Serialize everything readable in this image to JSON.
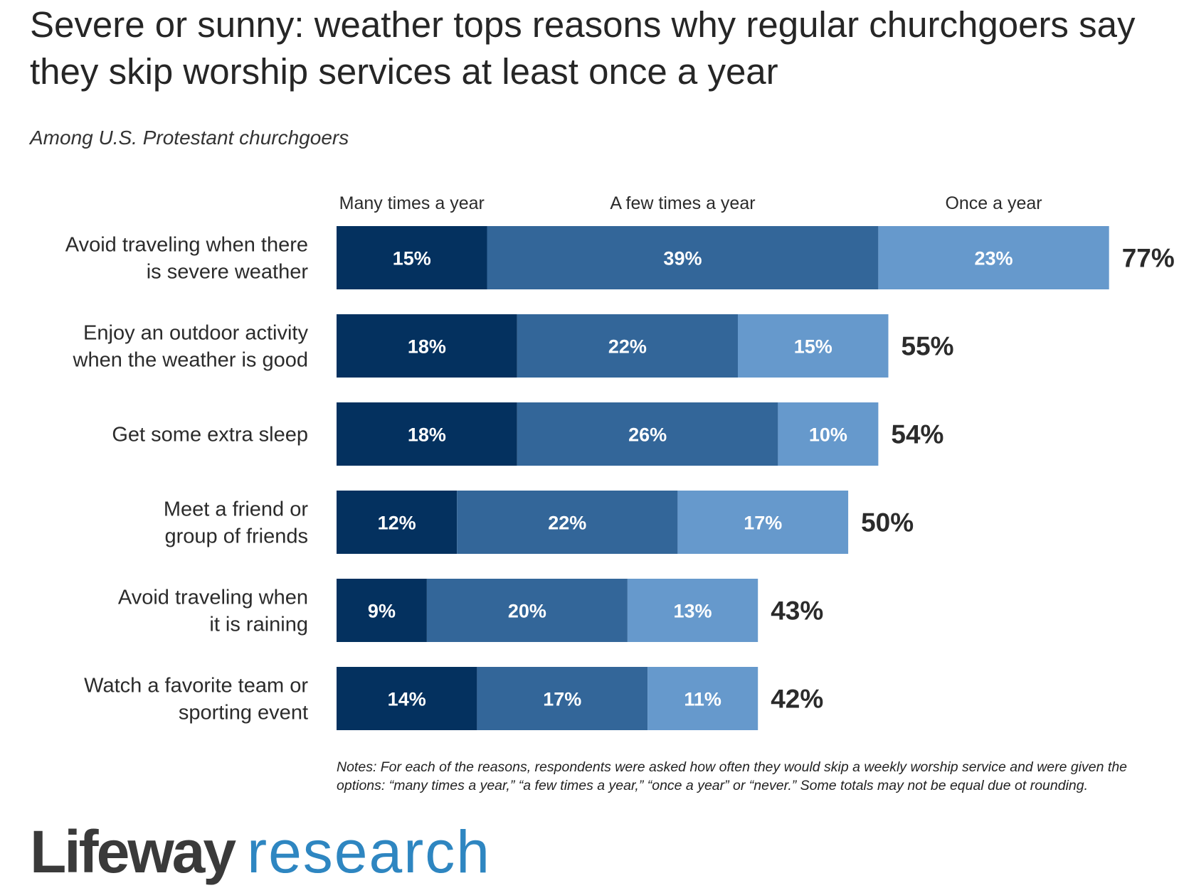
{
  "title": "Severe or sunny: weather tops reasons why regular churchgoers say they skip worship services at least once a year",
  "subtitle": "Among U.S. Protestant churchgoers",
  "notes": "Notes: For each of the reasons, respondents were asked how often they would skip a weekly worship service and were given the options: “many times a year,” “a few times a year,” “once a year” or “never.” Some totals may not be equal due ot rounding.",
  "logo": {
    "word1": "Lifeway",
    "word2": "research"
  },
  "colors": {
    "many": "#04315f",
    "few": "#336699",
    "once": "#6699cc",
    "label": "#ffffff",
    "total": "#2b2b2b"
  },
  "chart_data": {
    "type": "bar",
    "orientation": "horizontal",
    "stacked": true,
    "title": "Severe or sunny: weather tops reasons why regular churchgoers say they skip worship services at least once a year",
    "subtitle": "Among U.S. Protestant churchgoers",
    "xlim": [
      0,
      77
    ],
    "grid": false,
    "legend_position": "top",
    "categories": [
      [
        "Avoid traveling when there",
        "is severe weather"
      ],
      [
        "Enjoy an outdoor activity",
        "when the weather is good"
      ],
      [
        "Get some extra sleep"
      ],
      [
        "Meet a friend or",
        "group of friends"
      ],
      [
        "Avoid traveling when",
        "it is raining"
      ],
      [
        "Watch a favorite team or",
        "sporting event"
      ]
    ],
    "series": [
      {
        "name": "Many times a year",
        "values": [
          15,
          18,
          18,
          12,
          9,
          14
        ],
        "labels": [
          "15%",
          "18%",
          "18%",
          "12%",
          "9%",
          "14%"
        ]
      },
      {
        "name": "A few times a year",
        "values": [
          39,
          22,
          26,
          22,
          20,
          17
        ],
        "labels": [
          "39%",
          "22%",
          "26%",
          "22%",
          "20%",
          "17%"
        ]
      },
      {
        "name": "Once a year",
        "values": [
          23,
          15,
          10,
          17,
          13,
          11
        ],
        "labels": [
          "23%",
          "15%",
          "10%",
          "17%",
          "13%",
          "11%"
        ]
      }
    ],
    "totals": [
      77,
      55,
      54,
      50,
      43,
      42
    ],
    "total_labels": [
      "77%",
      "55%",
      "54%",
      "50%",
      "43%",
      "42%"
    ]
  }
}
